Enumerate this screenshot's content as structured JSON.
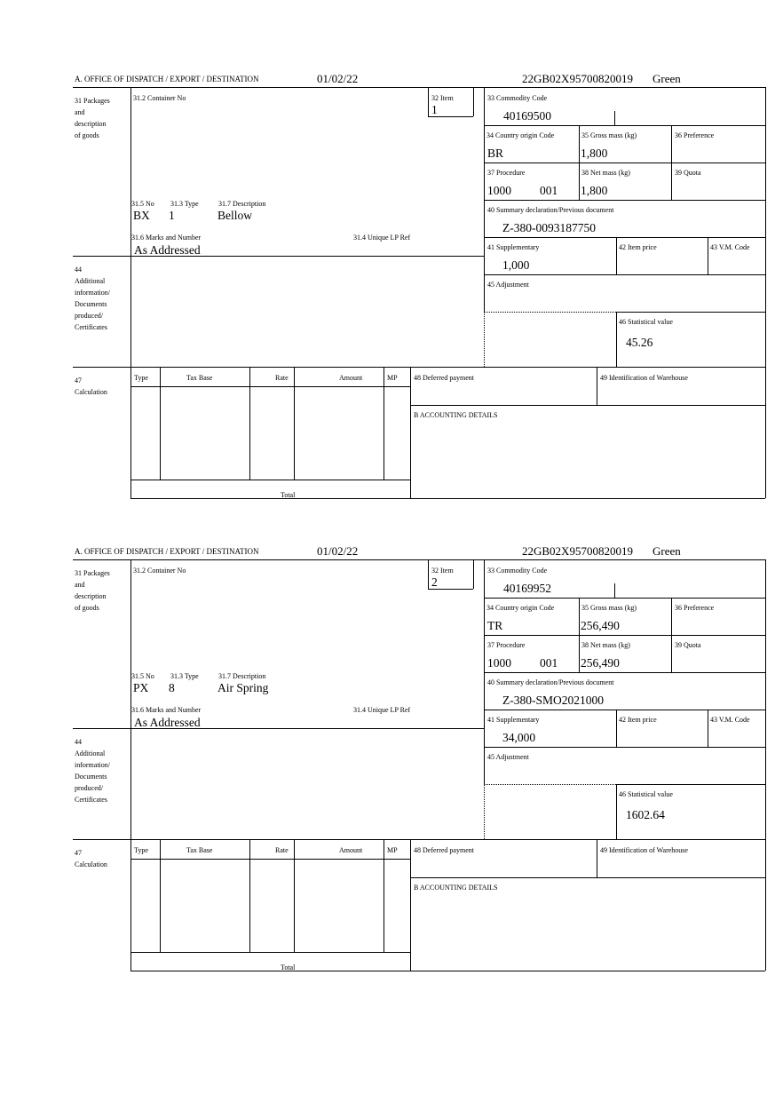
{
  "labels": {
    "office": "A.  OFFICE OF DISPATCH / EXPORT / DESTINATION",
    "b31": [
      "31 Packages",
      "and",
      "description",
      "of goods"
    ],
    "b31_2": "31.2 Container No",
    "b32": "32 Item",
    "b31_5": "31.5 No",
    "b31_3": "31.3 Type",
    "b31_7": "31.7 Description",
    "b31_6": "31.6 Marks and Number",
    "b31_4": "31.4 Unique LP Ref",
    "b33": "33 Commodity Code",
    "b34": "34 Country origin Code",
    "b35": "35 Gross mass (kg)",
    "b36": "36 Preference",
    "b37": "37 Procedure",
    "b38": "38 Net mass (kg)",
    "b39": "39 Quota",
    "b40": "40 Summary declaration/Previous document",
    "b41": "41 Supplementary",
    "b42": "42 Item price",
    "b43": "43 V.M. Code",
    "b44": [
      "44",
      "Additional",
      "information/",
      "Documents",
      "produced/",
      "Certificates"
    ],
    "b45": "45 Adjustment",
    "b46": "46 Statistical value",
    "b47": [
      "47",
      "Calculation"
    ],
    "calc_headers": [
      "Type",
      "Tax Base",
      "Rate",
      "Amount",
      "MP"
    ],
    "total": "Total",
    "b48": "48 Deferred payment",
    "b49": "49 Identification of Warehouse",
    "accounting": "B ACCOUNTING DETAILS"
  },
  "sections": [
    {
      "date": "01/02/22",
      "reference": "22GB02X95700820019",
      "route": "Green",
      "item": "1",
      "package_no": "BX",
      "package_type": "1",
      "description": "Bellow",
      "marks": "As Addressed",
      "commodity_code": "40169500",
      "country_origin": "BR",
      "gross_mass": "1,800",
      "procedure": "1000",
      "procedure_extra": "001",
      "net_mass": "1,800",
      "previous_document": "Z-380-0093187750",
      "supplementary": "1,000",
      "statistical_value": "45.26"
    },
    {
      "date": "01/02/22",
      "reference": "22GB02X95700820019",
      "route": "Green",
      "item": "2",
      "package_no": "PX",
      "package_type": "8",
      "description": "Air Spring",
      "marks": "As Addressed",
      "commodity_code": "40169952",
      "country_origin": "TR",
      "gross_mass": "256,490",
      "procedure": "1000",
      "procedure_extra": "001",
      "net_mass": "256,490",
      "previous_document": "Z-380-SMO2021000",
      "supplementary": "34,000",
      "statistical_value": "1602.64"
    }
  ]
}
